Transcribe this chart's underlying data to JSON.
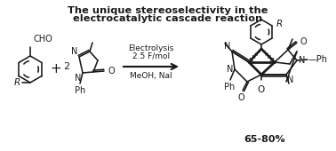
{
  "title_line1": "The unique stereoselectivity in the",
  "title_line2": "electrocatalytic cascade reaction",
  "title_fontsize": 8.2,
  "reagent_above": "Electrolysis",
  "reagent_mid": "2.5 F/mol",
  "reagent_below": "MeOH, NaI",
  "yield_text": "65-80%",
  "background": "#ffffff",
  "ink": "#1a1a1a",
  "lw": 1.15
}
